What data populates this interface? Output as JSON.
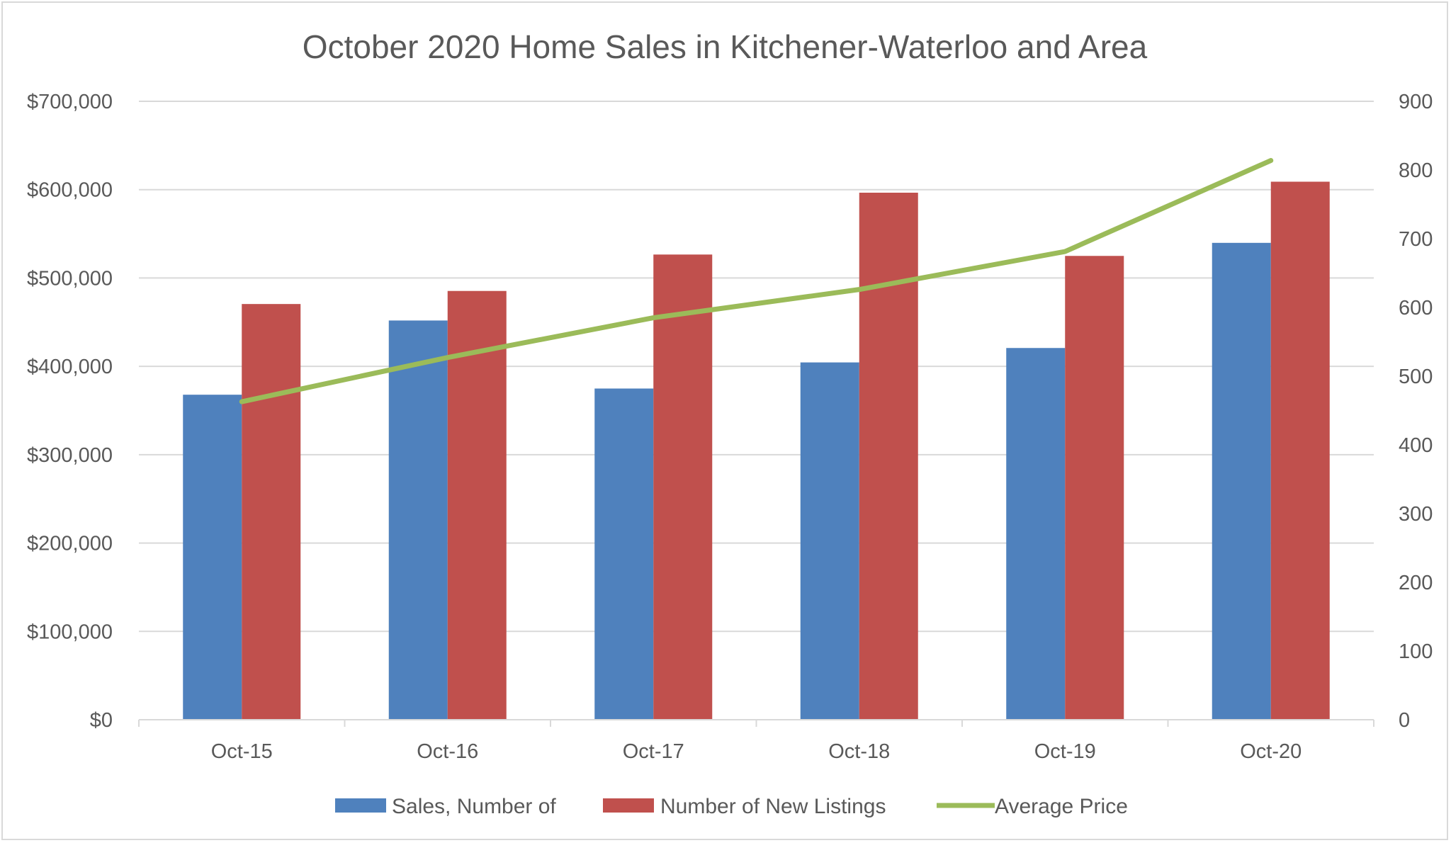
{
  "chart_data": {
    "type": "bar",
    "title": "October 2020 Home Sales in Kitchener-Waterloo and Area",
    "categories": [
      "Oct-15",
      "Oct-16",
      "Oct-17",
      "Oct-18",
      "Oct-19",
      "Oct-20"
    ],
    "series": [
      {
        "name": "Sales, Number of",
        "type": "bar",
        "axis": "right",
        "color": "#4f81bd",
        "values": [
          473,
          581,
          482,
          520,
          541,
          694
        ]
      },
      {
        "name": "Number of New Listings",
        "type": "bar",
        "axis": "right",
        "color": "#c0504d",
        "values": [
          605,
          624,
          677,
          767,
          675,
          783
        ]
      },
      {
        "name": "Average Price",
        "type": "line",
        "axis": "left",
        "color": "#9bbb59",
        "values": [
          360000,
          410000,
          455000,
          487000,
          530000,
          633000
        ]
      }
    ],
    "left_axis": {
      "ylim": [
        0,
        700000
      ],
      "ticks": [
        0,
        100000,
        200000,
        300000,
        400000,
        500000,
        600000,
        700000
      ],
      "tick_labels": [
        "$0",
        "$100,000",
        "$200,000",
        "$300,000",
        "$400,000",
        "$500,000",
        "$600,000",
        "$700,000"
      ]
    },
    "right_axis": {
      "ylim": [
        0,
        900
      ],
      "ticks": [
        0,
        100,
        200,
        300,
        400,
        500,
        600,
        700,
        800,
        900
      ],
      "tick_labels": [
        "0",
        "100",
        "200",
        "300",
        "400",
        "500",
        "600",
        "700",
        "800",
        "900"
      ]
    },
    "grid": true,
    "legend": "bottom",
    "gridline_color": "#d9d9d9"
  }
}
